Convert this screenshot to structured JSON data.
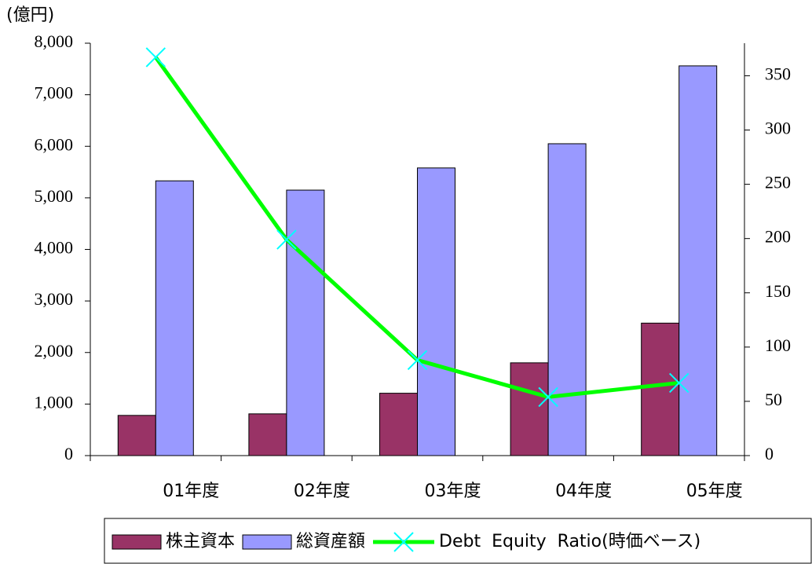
{
  "chart_data": {
    "type": "bar-line",
    "unit_label": "(億円)",
    "categories": [
      "01年度",
      "02年度",
      "03年度",
      "04年度",
      "05年度"
    ],
    "series": [
      {
        "name": "株主資本",
        "color": "#993366",
        "type": "bar",
        "values": [
          780,
          810,
          1210,
          1800,
          2570
        ]
      },
      {
        "name": "総資産額",
        "color": "#9999ff",
        "type": "bar",
        "values": [
          5330,
          5150,
          5580,
          6050,
          7560
        ]
      },
      {
        "name": "Debt  Equity  Ratio(時価ベース)",
        "color": "#00ff00",
        "marker_color": "#00ffff",
        "type": "line",
        "axis": "y2",
        "values": [
          367,
          199,
          88,
          54,
          67
        ]
      }
    ],
    "ylim": [
      0,
      8000
    ],
    "yticks": [
      0,
      {
        "value": 1000,
        "label": "1,000"
      },
      {
        "value": 2000,
        "label": "2,000"
      },
      {
        "value": 3000,
        "label": "3,000"
      },
      {
        "value": 4000,
        "label": "4,000"
      },
      {
        "value": 5000,
        "label": "5,000"
      },
      {
        "value": 6000,
        "label": "6,000"
      },
      {
        "value": 7000,
        "label": "7,000"
      },
      {
        "value": 8000,
        "label": "8,000"
      }
    ],
    "y2lim": [
      0,
      380
    ],
    "y2ticks": [
      0,
      50,
      100,
      150,
      200,
      250,
      300,
      350
    ],
    "grid": false,
    "legend": "bottom"
  }
}
